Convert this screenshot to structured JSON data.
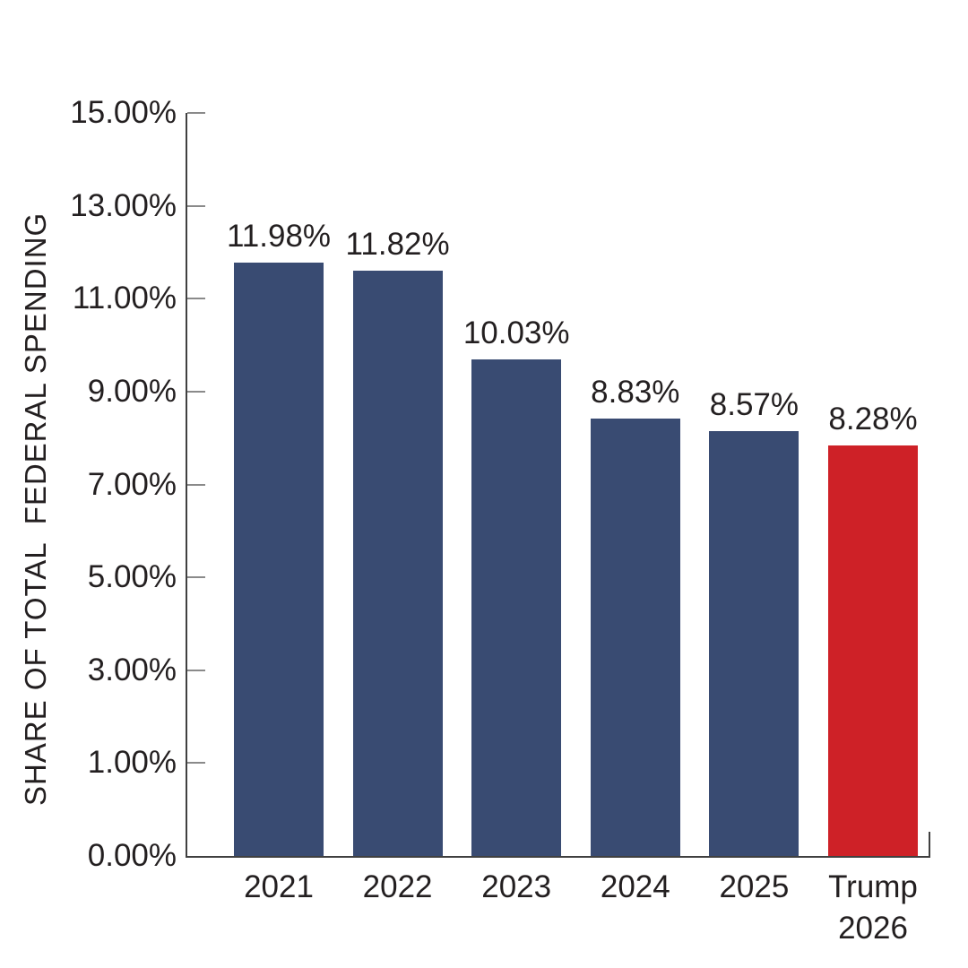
{
  "chart_data": {
    "type": "bar",
    "title": "",
    "xlabel": "",
    "ylabel": "SHARE OF TOTAL  FEDERAL SPENDING",
    "categories": [
      "2021",
      "2022",
      "2023",
      "2024",
      "2025",
      "Trump\n2026"
    ],
    "values": [
      11.98,
      11.82,
      10.03,
      8.83,
      8.57,
      8.28
    ],
    "data_labels": [
      "11.98%",
      "11.82%",
      "10.03%",
      "8.83%",
      "8.57%",
      "8.28%"
    ],
    "y_tick_labels": [
      "15.00%",
      "13.00%",
      "11.00%",
      "9.00%",
      "7.00%",
      "5.00%",
      "3.00%",
      "1.00%",
      "0.00%"
    ],
    "ylim": [
      0,
      15
    ],
    "grid": false,
    "legend": "none",
    "highlight_index": 5,
    "colors": {
      "bar": "#394B72",
      "highlight_bar": "#CE2127",
      "axis": "#404040",
      "tick": "#8A8A8A",
      "text": "#231F20"
    }
  }
}
